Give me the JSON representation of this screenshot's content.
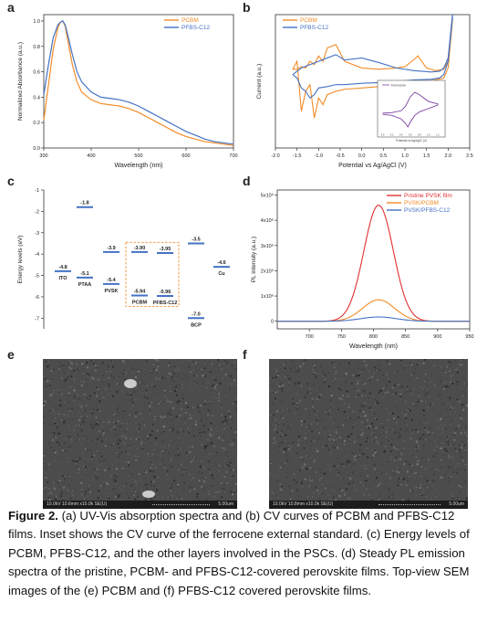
{
  "panels": {
    "a": "a",
    "b": "b",
    "c": "c",
    "d": "d",
    "e": "e",
    "f": "f"
  },
  "chart_data": [
    {
      "panel": "a",
      "type": "line",
      "xlabel": "Wavelength (nm)",
      "ylabel": "Normalized Absorbance (a.u.)",
      "xlim": [
        300,
        700
      ],
      "ylim": [
        0,
        1.05
      ],
      "xticks": [
        300,
        400,
        500,
        600,
        700
      ],
      "yticks": [
        0.0,
        0.2,
        0.4,
        0.6,
        0.8,
        1.0
      ],
      "legend": "top-right",
      "series": [
        {
          "name": "PCBM",
          "color": "#f28c28",
          "x": [
            300,
            310,
            320,
            330,
            335,
            340,
            345,
            350,
            360,
            370,
            380,
            400,
            420,
            440,
            460,
            480,
            500,
            520,
            540,
            560,
            580,
            600,
            620,
            640,
            660,
            680,
            700
          ],
          "y": [
            0.22,
            0.5,
            0.78,
            0.95,
            0.99,
            1.0,
            0.96,
            0.86,
            0.66,
            0.52,
            0.44,
            0.38,
            0.35,
            0.34,
            0.33,
            0.31,
            0.28,
            0.24,
            0.2,
            0.16,
            0.12,
            0.09,
            0.07,
            0.05,
            0.04,
            0.03,
            0.02
          ]
        },
        {
          "name": "PFBS-C12",
          "color": "#4472c4",
          "x": [
            300,
            310,
            320,
            330,
            335,
            340,
            345,
            350,
            360,
            370,
            380,
            400,
            420,
            440,
            460,
            480,
            500,
            520,
            540,
            560,
            580,
            600,
            620,
            640,
            660,
            680,
            700
          ],
          "y": [
            0.42,
            0.66,
            0.87,
            0.97,
            0.99,
            1.0,
            0.97,
            0.9,
            0.74,
            0.6,
            0.52,
            0.44,
            0.4,
            0.39,
            0.38,
            0.36,
            0.33,
            0.29,
            0.25,
            0.21,
            0.17,
            0.13,
            0.1,
            0.07,
            0.05,
            0.04,
            0.03
          ]
        }
      ]
    },
    {
      "panel": "b",
      "type": "line",
      "xlabel": "Potential vs Ag/AgCl (V)",
      "ylabel": "Current (a.u.)",
      "xlim": [
        -2.0,
        2.5
      ],
      "xticks": [
        -2.0,
        -1.5,
        -1.0,
        -0.5,
        0.0,
        0.5,
        1.0,
        1.5,
        2.0,
        2.5
      ],
      "ylim": [
        -1,
        1
      ],
      "legend": "top-left",
      "series": [
        {
          "name": "PCBM",
          "color": "#f28c28",
          "x": [
            -1.6,
            -1.5,
            -1.4,
            -1.3,
            -1.2,
            -1.1,
            -1.0,
            -0.9,
            -0.8,
            -0.6,
            -0.4,
            0.0,
            0.4,
            0.8,
            1.0,
            1.1,
            1.3,
            1.5,
            1.7,
            1.9,
            2.0,
            2.1,
            2.1,
            2.0,
            1.9,
            1.7,
            1.5,
            1.3,
            1.2,
            1.0,
            0.8,
            0.4,
            0.0,
            -0.4,
            -0.6,
            -0.8,
            -0.9,
            -1.0,
            -1.1,
            -1.2,
            -1.3,
            -1.4,
            -1.5,
            -1.6
          ],
          "y": [
            0.18,
            0.3,
            -0.45,
            -0.15,
            -0.05,
            -0.55,
            -0.25,
            -0.35,
            -0.2,
            -0.15,
            -0.12,
            -0.1,
            -0.08,
            -0.05,
            -0.04,
            -0.03,
            -0.02,
            0.0,
            0.02,
            0.05,
            0.2,
            0.9,
            0.95,
            0.3,
            0.18,
            0.16,
            0.2,
            0.38,
            0.32,
            0.22,
            0.2,
            0.18,
            0.2,
            0.3,
            0.55,
            0.5,
            0.3,
            0.38,
            0.25,
            0.3,
            0.2,
            0.22,
            0.18,
            0.18
          ]
        },
        {
          "name": "PFBS-C12",
          "color": "#4472c4",
          "x": [
            -1.6,
            -1.5,
            -1.4,
            -1.3,
            -1.2,
            -1.1,
            -1.0,
            -0.8,
            -0.6,
            -0.4,
            0.0,
            0.4,
            0.8,
            1.2,
            1.6,
            1.8,
            1.9,
            2.0,
            2.1,
            2.1,
            2.0,
            1.9,
            1.8,
            1.6,
            1.2,
            0.8,
            0.4,
            0.0,
            -0.4,
            -0.6,
            -0.8,
            -1.0,
            -1.2,
            -1.4,
            -1.6
          ],
          "y": [
            0.1,
            0.05,
            -0.1,
            -0.15,
            -0.25,
            -0.2,
            -0.1,
            -0.08,
            -0.05,
            -0.05,
            -0.03,
            -0.02,
            0.0,
            0.02,
            0.03,
            0.05,
            0.1,
            0.3,
            0.95,
            1.0,
            0.35,
            0.2,
            0.15,
            0.14,
            0.16,
            0.2,
            0.28,
            0.35,
            0.32,
            0.4,
            0.35,
            0.3,
            0.25,
            0.2,
            0.1
          ]
        }
      ],
      "inset": {
        "series_name": "Ferrocene",
        "xlabel": "Potential vs Ag/AgCl (V)",
        "xticks": [
          0.0,
          0.2,
          0.4,
          0.6,
          0.8,
          1.0,
          1.2
        ],
        "x": [
          0.0,
          0.2,
          0.4,
          0.5,
          0.55,
          0.6,
          0.7,
          0.8,
          1.0,
          1.2,
          1.2,
          1.0,
          0.8,
          0.7,
          0.6,
          0.55,
          0.5,
          0.4,
          0.2,
          0.0
        ],
        "y": [
          0.0,
          0.02,
          0.1,
          0.3,
          0.5,
          0.7,
          0.9,
          0.8,
          0.5,
          0.4,
          0.35,
          0.2,
          0.05,
          -0.1,
          -0.4,
          -0.6,
          -0.45,
          -0.25,
          -0.1,
          -0.05
        ]
      }
    },
    {
      "panel": "c",
      "type": "diagram",
      "ylabel": "Energy levels (eV)",
      "ylim": [
        -7.5,
        -1
      ],
      "yticks": [
        -1,
        -2,
        -3,
        -4,
        -5,
        -6,
        -7
      ],
      "levels": [
        {
          "name": "ITO",
          "values": [
            {
              "value": "-4.8",
              "level": -4.8
            }
          ]
        },
        {
          "name": "PTAA",
          "values": [
            {
              "value": "-1.8",
              "level": -1.8
            },
            {
              "value": "-5.1",
              "level": -5.1
            }
          ]
        },
        {
          "name": "PVSK",
          "values": [
            {
              "value": "-3.9",
              "level": -3.9
            },
            {
              "value": "-5.4",
              "level": -5.4
            }
          ]
        },
        {
          "name": "PCBM",
          "values": [
            {
              "value": "-3.90",
              "level": -3.9
            },
            {
              "value": "-5.94",
              "level": -5.94
            }
          ]
        },
        {
          "name": "PFBS-C12",
          "values": [
            {
              "value": "-3.95",
              "level": -3.95
            },
            {
              "value": "-5.96",
              "level": -5.96
            }
          ]
        },
        {
          "name": "BCP",
          "values": [
            {
              "value": "-3.5",
              "level": -3.5
            },
            {
              "value": "-7.0",
              "level": -7.0
            }
          ]
        },
        {
          "name": "Cu",
          "values": [
            {
              "value": "-4.6",
              "level": -4.6
            }
          ]
        }
      ]
    },
    {
      "panel": "d",
      "type": "line",
      "xlabel": "Wavelength (nm)",
      "ylabel": "PL intensity (a.u.)",
      "xlim": [
        650,
        950
      ],
      "ylim": [
        -300000,
        5200000
      ],
      "xticks": [
        700,
        750,
        800,
        850,
        900,
        950
      ],
      "yticks": [
        0,
        1000000,
        2000000,
        3000000,
        4000000,
        5000000
      ],
      "ytick_labels": [
        "0",
        "1x10⁶",
        "2x10⁶",
        "3x10⁶",
        "4x10⁶",
        "5x10⁶"
      ],
      "legend": "top-right",
      "series": [
        {
          "name": "Pristine PVSK film",
          "color": "#e03131",
          "peak": 808,
          "width": 23,
          "amplitude": 4600000
        },
        {
          "name": "PVSK/PCBM",
          "color": "#f28c28",
          "peak": 808,
          "width": 25,
          "amplitude": 850000
        },
        {
          "name": "PVSK/PFBS-C12",
          "color": "#4472c4",
          "peak": 808,
          "width": 28,
          "amplitude": 170000
        }
      ]
    }
  ],
  "sem": [
    {
      "panel": "e",
      "info": "10.0kV 10.6mm x10.0k SE(U)",
      "scale": "5.00um"
    },
    {
      "panel": "f",
      "info": "10.0kV 10.8mm x10.0k SE(U)",
      "scale": "5.00um"
    }
  ],
  "caption": {
    "label": "Figure 2.",
    "text": " (a) UV-Vis absorption spectra and (b) CV curves of PCBM and PFBS-C12 films. Inset shows the CV curve of the ferrocene external standard. (c) Energy levels of PCBM, PFBS-C12, and the other layers involved in the PSCs. (d) Steady PL emission spectra of the pristine, PCBM- and PFBS-C12-covered perovskite films. Top-view SEM images of the (e) PCBM and (f) PFBS-C12 covered perovskite films."
  }
}
